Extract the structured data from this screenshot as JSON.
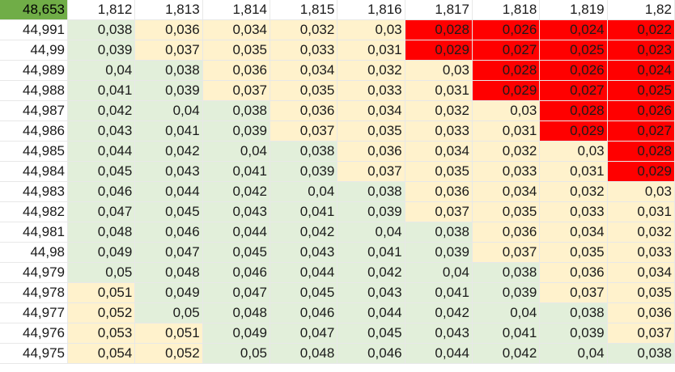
{
  "corner_value": "48,653",
  "colors": {
    "corner": "#70ad47",
    "green": "#e2efda",
    "yellow": "#fff2cc",
    "red": "#ff0000"
  },
  "col_headers": [
    "1,812",
    "1,813",
    "1,814",
    "1,815",
    "1,816",
    "1,817",
    "1,818",
    "1,819",
    "1,82"
  ],
  "rows": [
    {
      "label": "44,991",
      "values": [
        "0,038",
        "0,036",
        "0,034",
        "0,032",
        "0,03",
        "0,028",
        "0,026",
        "0,024",
        "0,022"
      ],
      "colors": [
        "g",
        "y",
        "y",
        "y",
        "y",
        "r",
        "r",
        "r",
        "r"
      ]
    },
    {
      "label": "44,99",
      "values": [
        "0,039",
        "0,037",
        "0,035",
        "0,033",
        "0,031",
        "0,029",
        "0,027",
        "0,025",
        "0,023"
      ],
      "colors": [
        "g",
        "y",
        "y",
        "y",
        "y",
        "r",
        "r",
        "r",
        "r"
      ]
    },
    {
      "label": "44,989",
      "values": [
        "0,04",
        "0,038",
        "0,036",
        "0,034",
        "0,032",
        "0,03",
        "0,028",
        "0,026",
        "0,024"
      ],
      "colors": [
        "g",
        "g",
        "y",
        "y",
        "y",
        "y",
        "r",
        "r",
        "r"
      ]
    },
    {
      "label": "44,988",
      "values": [
        "0,041",
        "0,039",
        "0,037",
        "0,035",
        "0,033",
        "0,031",
        "0,029",
        "0,027",
        "0,025"
      ],
      "colors": [
        "g",
        "g",
        "y",
        "y",
        "y",
        "y",
        "r",
        "r",
        "r"
      ]
    },
    {
      "label": "44,987",
      "values": [
        "0,042",
        "0,04",
        "0,038",
        "0,036",
        "0,034",
        "0,032",
        "0,03",
        "0,028",
        "0,026"
      ],
      "colors": [
        "g",
        "g",
        "g",
        "y",
        "y",
        "y",
        "y",
        "r",
        "r"
      ]
    },
    {
      "label": "44,986",
      "values": [
        "0,043",
        "0,041",
        "0,039",
        "0,037",
        "0,035",
        "0,033",
        "0,031",
        "0,029",
        "0,027"
      ],
      "colors": [
        "g",
        "g",
        "g",
        "y",
        "y",
        "y",
        "y",
        "r",
        "r"
      ]
    },
    {
      "label": "44,985",
      "values": [
        "0,044",
        "0,042",
        "0,04",
        "0,038",
        "0,036",
        "0,034",
        "0,032",
        "0,03",
        "0,028"
      ],
      "colors": [
        "g",
        "g",
        "g",
        "g",
        "y",
        "y",
        "y",
        "y",
        "r"
      ]
    },
    {
      "label": "44,984",
      "values": [
        "0,045",
        "0,043",
        "0,041",
        "0,039",
        "0,037",
        "0,035",
        "0,033",
        "0,031",
        "0,029"
      ],
      "colors": [
        "g",
        "g",
        "g",
        "g",
        "y",
        "y",
        "y",
        "y",
        "r"
      ]
    },
    {
      "label": "44,983",
      "values": [
        "0,046",
        "0,044",
        "0,042",
        "0,04",
        "0,038",
        "0,036",
        "0,034",
        "0,032",
        "0,03"
      ],
      "colors": [
        "g",
        "g",
        "g",
        "g",
        "g",
        "y",
        "y",
        "y",
        "y"
      ]
    },
    {
      "label": "44,982",
      "values": [
        "0,047",
        "0,045",
        "0,043",
        "0,041",
        "0,039",
        "0,037",
        "0,035",
        "0,033",
        "0,031"
      ],
      "colors": [
        "g",
        "g",
        "g",
        "g",
        "g",
        "y",
        "y",
        "y",
        "y"
      ]
    },
    {
      "label": "44,981",
      "values": [
        "0,048",
        "0,046",
        "0,044",
        "0,042",
        "0,04",
        "0,038",
        "0,036",
        "0,034",
        "0,032"
      ],
      "colors": [
        "g",
        "g",
        "g",
        "g",
        "g",
        "g",
        "y",
        "y",
        "y"
      ]
    },
    {
      "label": "44,98",
      "values": [
        "0,049",
        "0,047",
        "0,045",
        "0,043",
        "0,041",
        "0,039",
        "0,037",
        "0,035",
        "0,033"
      ],
      "colors": [
        "g",
        "g",
        "g",
        "g",
        "g",
        "g",
        "y",
        "y",
        "y"
      ]
    },
    {
      "label": "44,979",
      "values": [
        "0,05",
        "0,048",
        "0,046",
        "0,044",
        "0,042",
        "0,04",
        "0,038",
        "0,036",
        "0,034"
      ],
      "colors": [
        "g",
        "g",
        "g",
        "g",
        "g",
        "g",
        "g",
        "y",
        "y"
      ]
    },
    {
      "label": "44,978",
      "values": [
        "0,051",
        "0,049",
        "0,047",
        "0,045",
        "0,043",
        "0,041",
        "0,039",
        "0,037",
        "0,035"
      ],
      "colors": [
        "y",
        "g",
        "g",
        "g",
        "g",
        "g",
        "g",
        "y",
        "y"
      ]
    },
    {
      "label": "44,977",
      "values": [
        "0,052",
        "0,05",
        "0,048",
        "0,046",
        "0,044",
        "0,042",
        "0,04",
        "0,038",
        "0,036"
      ],
      "colors": [
        "y",
        "g",
        "g",
        "g",
        "g",
        "g",
        "g",
        "g",
        "y"
      ]
    },
    {
      "label": "44,976",
      "values": [
        "0,053",
        "0,051",
        "0,049",
        "0,047",
        "0,045",
        "0,043",
        "0,041",
        "0,039",
        "0,037"
      ],
      "colors": [
        "y",
        "y",
        "g",
        "g",
        "g",
        "g",
        "g",
        "g",
        "y"
      ]
    },
    {
      "label": "44,975",
      "values": [
        "0,054",
        "0,052",
        "0,05",
        "0,048",
        "0,046",
        "0,044",
        "0,042",
        "0,04",
        "0,038"
      ],
      "colors": [
        "y",
        "y",
        "g",
        "g",
        "g",
        "g",
        "g",
        "g",
        "g"
      ]
    }
  ]
}
